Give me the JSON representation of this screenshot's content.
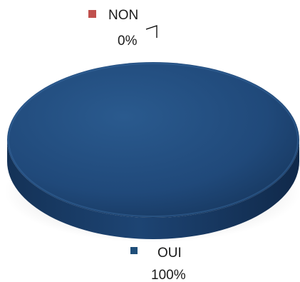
{
  "chart_data": {
    "type": "pie",
    "style": "3d",
    "slices": [
      {
        "label": "OUI",
        "value": 100,
        "value_label": "100%",
        "color": "#1f4e79"
      },
      {
        "label": "NON",
        "value": 0,
        "value_label": "0%",
        "color": "#c0504d"
      }
    ],
    "legend": "none",
    "data_labels": true
  }
}
